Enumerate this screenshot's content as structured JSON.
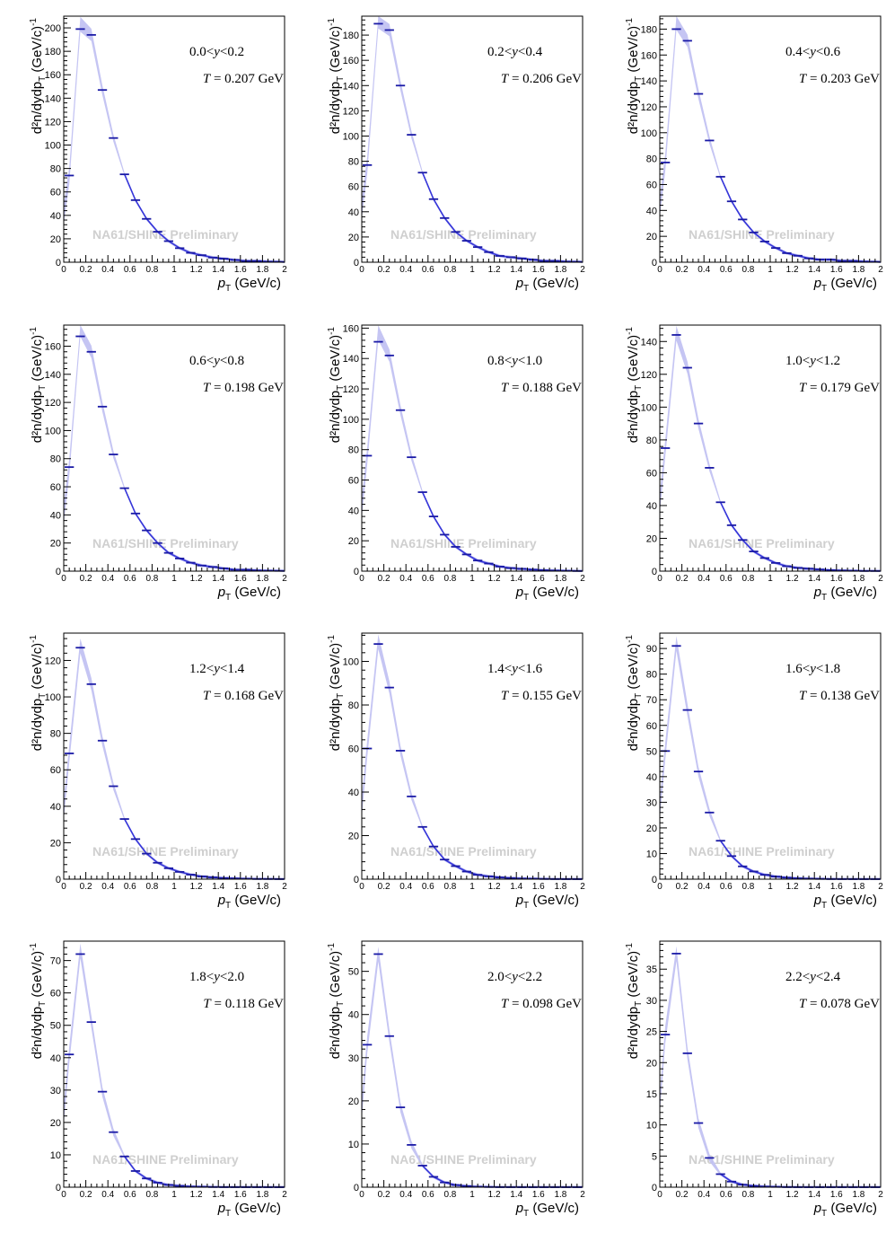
{
  "figure": {
    "watermark": "NA61/SHINE Preliminary",
    "colors": {
      "data": "#1a1aa6",
      "fit_band": "#bfbff2",
      "fit_line": "#3636d9",
      "watermark": "#cfcfcf",
      "frame": "#000000"
    }
  },
  "chart_data": [
    {
      "type": "line",
      "rapidity": "0.0<y<0.2",
      "temperature": "T = 0.207 GeV",
      "xlim": [
        0,
        2
      ],
      "ylim": [
        0,
        210
      ],
      "yticks": [
        0,
        20,
        40,
        60,
        80,
        100,
        120,
        140,
        160,
        180,
        200
      ],
      "x": [
        0.05,
        0.15,
        0.25,
        0.35,
        0.45,
        0.55,
        0.65,
        0.75,
        0.85,
        0.95,
        1.05,
        1.15,
        1.25,
        1.35,
        1.45,
        1.55,
        1.65,
        1.75,
        1.85,
        1.95
      ],
      "values": [
        74,
        199,
        194,
        147,
        106,
        75,
        53,
        37,
        26,
        18,
        12,
        8,
        6,
        4,
        3,
        2,
        1,
        1,
        0.5,
        0.3
      ],
      "fit_peak": 203
    },
    {
      "type": "line",
      "rapidity": "0.2<y<0.4",
      "temperature": "T = 0.206 GeV",
      "xlim": [
        0,
        2
      ],
      "ylim": [
        0,
        195
      ],
      "yticks": [
        0,
        20,
        40,
        60,
        80,
        100,
        120,
        140,
        160,
        180
      ],
      "x": [
        0.05,
        0.15,
        0.25,
        0.35,
        0.45,
        0.55,
        0.65,
        0.75,
        0.85,
        0.95,
        1.05,
        1.15,
        1.25,
        1.35,
        1.45,
        1.55,
        1.65,
        1.75,
        1.85,
        1.95
      ],
      "values": [
        77,
        189,
        184,
        140,
        101,
        71,
        50,
        35,
        24,
        17,
        12,
        8,
        5,
        4,
        3,
        2,
        1,
        1,
        0.5,
        0.3
      ],
      "fit_peak": 191
    },
    {
      "type": "line",
      "rapidity": "0.4<y<0.6",
      "temperature": "T = 0.203 GeV",
      "xlim": [
        0,
        2
      ],
      "ylim": [
        0,
        190
      ],
      "yticks": [
        0,
        20,
        40,
        60,
        80,
        100,
        120,
        140,
        160,
        180
      ],
      "x": [
        0.05,
        0.15,
        0.25,
        0.35,
        0.45,
        0.55,
        0.65,
        0.75,
        0.85,
        0.95,
        1.05,
        1.15,
        1.25,
        1.35,
        1.45,
        1.55,
        1.65,
        1.75,
        1.85,
        1.95
      ],
      "values": [
        77,
        180,
        171,
        130,
        94,
        66,
        47,
        33,
        23,
        16,
        11,
        7,
        5,
        3,
        2,
        2,
        1,
        1,
        0.5,
        0.3
      ],
      "fit_peak": 185
    },
    {
      "type": "line",
      "rapidity": "0.6<y<0.8",
      "temperature": "T = 0.198 GeV",
      "xlim": [
        0,
        2
      ],
      "ylim": [
        0,
        175
      ],
      "yticks": [
        0,
        20,
        40,
        60,
        80,
        100,
        120,
        140,
        160
      ],
      "x": [
        0.05,
        0.15,
        0.25,
        0.35,
        0.45,
        0.55,
        0.65,
        0.75,
        0.85,
        0.95,
        1.05,
        1.15,
        1.25,
        1.35,
        1.45,
        1.55,
        1.65,
        1.75,
        1.85,
        1.95
      ],
      "values": [
        74,
        167,
        156,
        117,
        83,
        59,
        41,
        29,
        20,
        13,
        9,
        6,
        4,
        3,
        2,
        1,
        1,
        0.5,
        0.3,
        0.2
      ],
      "fit_peak": 172
    },
    {
      "type": "line",
      "rapidity": "0.8<y<1.0",
      "temperature": "T = 0.188 GeV",
      "xlim": [
        0,
        2
      ],
      "ylim": [
        0,
        162
      ],
      "yticks": [
        0,
        20,
        40,
        60,
        80,
        100,
        120,
        140,
        160
      ],
      "x": [
        0.05,
        0.15,
        0.25,
        0.35,
        0.45,
        0.55,
        0.65,
        0.75,
        0.85,
        0.95,
        1.05,
        1.15,
        1.25,
        1.35,
        1.45,
        1.55,
        1.65,
        1.75,
        1.85,
        1.95
      ],
      "values": [
        76,
        151,
        142,
        106,
        75,
        52,
        36,
        24,
        16,
        11,
        7,
        5,
        3,
        2,
        1.5,
        1,
        0.6,
        0.4,
        0.2,
        0.1
      ],
      "fit_peak": 157
    },
    {
      "type": "line",
      "rapidity": "1.0<y<1.2",
      "temperature": "T = 0.179 GeV",
      "xlim": [
        0,
        2
      ],
      "ylim": [
        0,
        150
      ],
      "yticks": [
        0,
        20,
        40,
        60,
        80,
        100,
        120,
        140
      ],
      "x": [
        0.05,
        0.15,
        0.25,
        0.35,
        0.45,
        0.55,
        0.65,
        0.75,
        0.85,
        0.95,
        1.05,
        1.15,
        1.25,
        1.35,
        1.45,
        1.55,
        1.65,
        1.75,
        1.85,
        1.95
      ],
      "values": [
        75,
        144,
        124,
        90,
        63,
        42,
        28,
        19,
        12,
        8,
        5,
        3,
        2,
        1.5,
        1,
        0.6,
        0.4,
        0.2,
        0.1,
        0.1
      ],
      "fit_peak": 145
    },
    {
      "type": "line",
      "rapidity": "1.2<y<1.4",
      "temperature": "T = 0.168 GeV",
      "xlim": [
        0,
        2
      ],
      "ylim": [
        0,
        135
      ],
      "yticks": [
        0,
        20,
        40,
        60,
        80,
        100,
        120
      ],
      "x": [
        0.05,
        0.15,
        0.25,
        0.35,
        0.45,
        0.55,
        0.65,
        0.75,
        0.85,
        0.95,
        1.05,
        1.15,
        1.25,
        1.35,
        1.45,
        1.55,
        1.65,
        1.75,
        1.85,
        1.95
      ],
      "values": [
        69,
        127,
        107,
        76,
        51,
        33,
        22,
        14,
        9,
        6,
        4,
        2.5,
        1.5,
        1,
        0.6,
        0.4,
        0.2,
        0.1,
        0.1,
        0.05
      ],
      "fit_peak": 128
    },
    {
      "type": "line",
      "rapidity": "1.4<y<1.6",
      "temperature": "T = 0.155 GeV",
      "xlim": [
        0,
        2
      ],
      "ylim": [
        0,
        113
      ],
      "yticks": [
        0,
        20,
        40,
        60,
        80,
        100
      ],
      "x": [
        0.05,
        0.15,
        0.25,
        0.35,
        0.45,
        0.55,
        0.65,
        0.75,
        0.85,
        0.95,
        1.05,
        1.15,
        1.25,
        1.35,
        1.45,
        1.55,
        1.65,
        1.75,
        1.85,
        1.95
      ],
      "values": [
        60,
        108,
        88,
        59,
        38,
        24,
        15,
        9,
        6,
        3.5,
        2,
        1.3,
        0.8,
        0.5,
        0.3,
        0.2,
        0.1,
        0.05,
        0.03,
        0.02
      ],
      "fit_peak": 109
    },
    {
      "type": "line",
      "rapidity": "1.6<y<1.8",
      "temperature": "T = 0.138 GeV",
      "xlim": [
        0,
        2
      ],
      "ylim": [
        0,
        96
      ],
      "yticks": [
        0,
        10,
        20,
        30,
        40,
        50,
        60,
        70,
        80,
        90
      ],
      "x": [
        0.05,
        0.15,
        0.25,
        0.35,
        0.45,
        0.55,
        0.65,
        0.75,
        0.85,
        0.95,
        1.05,
        1.15,
        1.25,
        1.35,
        1.45,
        1.55,
        1.65,
        1.75,
        1.85,
        1.95
      ],
      "values": [
        50,
        91,
        66,
        42,
        26,
        15,
        9,
        5,
        3,
        1.7,
        1,
        0.6,
        0.3,
        0.2,
        0.1,
        0.05,
        0.03,
        0.02,
        0.01,
        0.01
      ],
      "fit_peak": 92
    },
    {
      "type": "line",
      "rapidity": "1.8<y<2.0",
      "temperature": "T = 0.118 GeV",
      "xlim": [
        0,
        2
      ],
      "ylim": [
        0,
        76
      ],
      "yticks": [
        0,
        10,
        20,
        30,
        40,
        50,
        60,
        70
      ],
      "x": [
        0.05,
        0.15,
        0.25,
        0.35,
        0.45,
        0.55,
        0.65,
        0.75,
        0.85,
        0.95,
        1.05,
        1.15,
        1.25,
        1.35,
        1.45,
        1.55,
        1.65,
        1.75,
        1.85,
        1.95
      ],
      "values": [
        41,
        72,
        51,
        29.5,
        17,
        9.5,
        5,
        2.7,
        1.4,
        0.7,
        0.4,
        0.2,
        0.1,
        0.05,
        0.03,
        0.02,
        0.01,
        0.01,
        0,
        0
      ],
      "fit_peak": 73
    },
    {
      "type": "line",
      "rapidity": "2.0<y<2.2",
      "temperature": "T = 0.098 GeV",
      "xlim": [
        0,
        2
      ],
      "ylim": [
        0,
        57
      ],
      "yticks": [
        0,
        10,
        20,
        30,
        40,
        50
      ],
      "x": [
        0.05,
        0.15,
        0.25,
        0.35,
        0.45,
        0.55,
        0.65,
        0.75,
        0.85,
        0.95,
        1.05,
        1.15,
        1.25,
        1.35,
        1.45,
        1.55,
        1.65,
        1.75,
        1.85,
        1.95
      ],
      "values": [
        33,
        54,
        35,
        18.5,
        9.8,
        5,
        2.4,
        1.1,
        0.5,
        0.25,
        0.1,
        0.05,
        0.02,
        0.01,
        0,
        0,
        0,
        0,
        0,
        0
      ],
      "fit_peak": 54
    },
    {
      "type": "line",
      "rapidity": "2.2<y<2.4",
      "temperature": "T = 0.078 GeV",
      "xlim": [
        0,
        2
      ],
      "ylim": [
        0,
        39.5
      ],
      "yticks": [
        0,
        5,
        10,
        15,
        20,
        25,
        30,
        35
      ],
      "x": [
        0.05,
        0.15,
        0.25,
        0.35,
        0.45,
        0.55,
        0.65,
        0.75,
        0.85,
        0.95,
        1.05,
        1.15,
        1.25,
        1.35,
        1.45,
        1.55,
        1.65,
        1.75,
        1.85,
        1.95
      ],
      "values": [
        24.5,
        37.5,
        21.5,
        10.3,
        4.7,
        2.1,
        0.9,
        0.4,
        0.2,
        0.1,
        0.05,
        0.02,
        0.01,
        0,
        0,
        0,
        0,
        0,
        0,
        0
      ],
      "fit_peak": 37.5
    }
  ],
  "axes": {
    "xlabel_main": "p",
    "xlabel_sub": "T",
    "xlabel_units": "(GeV/c)",
    "xticks": [
      "0",
      "0.2",
      "0.4",
      "0.6",
      "0.8",
      "1",
      "1.2",
      "1.4",
      "1.6",
      "1.8",
      "2"
    ],
    "ylabel": "d²n/dydp",
    "ylabel_sub": "T",
    "ylabel_units": "(GeV/c)",
    "ylabel_exp": "-1"
  }
}
